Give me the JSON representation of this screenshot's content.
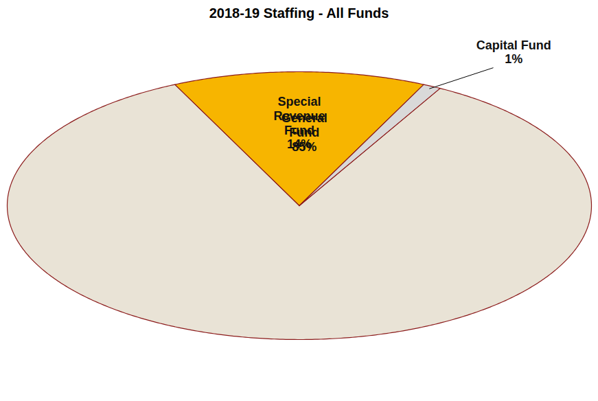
{
  "chart_data": {
    "type": "pie",
    "title": "2018-19 Staffing - All Funds",
    "categories": [
      "General Fund",
      "Special Revenue Fund",
      "Capital Fund"
    ],
    "values": [
      85,
      14,
      1
    ],
    "value_labels": [
      "85%",
      "14%",
      "1%"
    ],
    "colors": [
      "#e9e3d6",
      "#f7b500",
      "#d9d9d9"
    ],
    "data_labels": true
  }
}
